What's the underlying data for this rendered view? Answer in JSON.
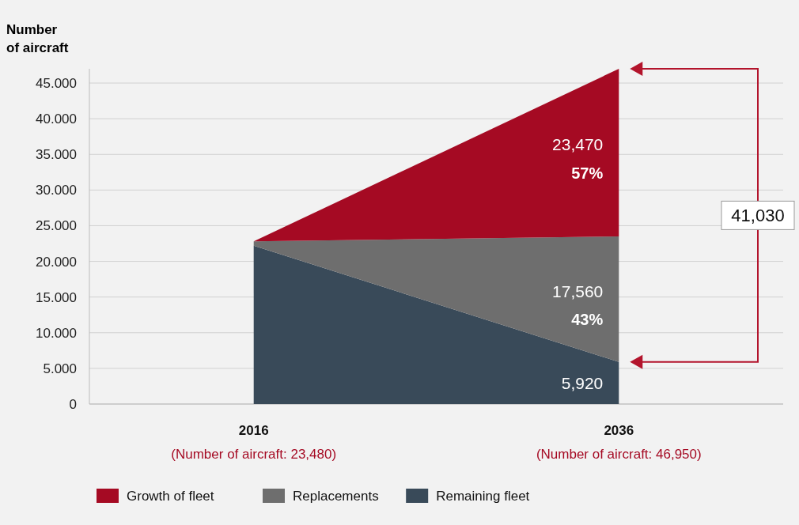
{
  "chart_data": {
    "type": "area",
    "stacked": true,
    "ylabel": "Number of aircraft",
    "categories": [
      "2016",
      "2036"
    ],
    "series": [
      {
        "name": "Remaining fleet",
        "color": "#394a59",
        "values": [
          22200,
          5900
        ]
      },
      {
        "name": "Replacements",
        "color": "#6e6e6e",
        "values": [
          600,
          17600
        ]
      },
      {
        "name": "Growth of fleet",
        "color": "#a50a23",
        "values": [
          0,
          23500
        ]
      }
    ],
    "ylim": [
      0,
      47000
    ],
    "yticks": [
      {
        "value": 0,
        "label": "0"
      },
      {
        "value": 5000,
        "label": "5.000"
      },
      {
        "value": 10000,
        "label": "10.000"
      },
      {
        "value": 15000,
        "label": "15.000"
      },
      {
        "value": 20000,
        "label": "20.000"
      },
      {
        "value": 25000,
        "label": "25.000"
      },
      {
        "value": 30000,
        "label": "30.000"
      },
      {
        "value": 35000,
        "label": "35.000"
      },
      {
        "value": 40000,
        "label": "40.000"
      },
      {
        "value": 45000,
        "label": "45.000"
      }
    ],
    "grid": "y",
    "legend": "bottom",
    "annotations": [
      "(Number of aircraft: 23,480)",
      "(Number of aircraft: 46,950)",
      "23,470",
      "57%",
      "17,560",
      "43%",
      "5,920",
      "41,030"
    ]
  }
}
